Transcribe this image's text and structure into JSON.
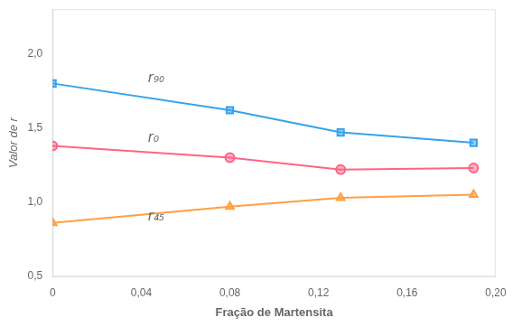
{
  "chart_data": {
    "type": "line",
    "x": [
      0,
      0.08,
      0.13,
      0.19
    ],
    "series": [
      {
        "values": [
          1.8,
          1.62,
          1.47,
          1.4
        ],
        "marker": "square"
      },
      {
        "values": [
          1.38,
          1.3,
          1.22,
          1.23
        ],
        "marker": "circle"
      },
      {
        "values": [
          0.86,
          0.97,
          1.03,
          1.05
        ],
        "marker": "triangle"
      }
    ],
    "xlabel": "Fração de Martensita",
    "ylabel": "Valor de r",
    "xlim": [
      0,
      0.2
    ],
    "ylim": [
      0.5,
      2.3
    ],
    "xticks": [
      0,
      {
        "value": 0.04,
        "label": "0,04"
      },
      {
        "value": 0.08,
        "label": "0,08"
      },
      {
        "value": 0.12,
        "label": "0,12"
      },
      {
        "value": 0.16,
        "label": "0,16"
      },
      {
        "value": 0.2,
        "label": "0,20"
      }
    ],
    "yticks": [
      {
        "value": 0.5,
        "label": "0,5"
      },
      {
        "value": 1.0,
        "label": "1,0"
      },
      {
        "value": 1.5,
        "label": "1,5"
      },
      {
        "value": 2.0,
        "label": "2,0"
      }
    ],
    "annotations": [
      {
        "text": "r₉₀",
        "x": 0.043,
        "y": 1.83
      },
      {
        "text": "r₀",
        "x": 0.043,
        "y": 1.43
      },
      {
        "text": "r₄₅",
        "x": 0.043,
        "y": 0.9
      }
    ],
    "grid": false
  }
}
